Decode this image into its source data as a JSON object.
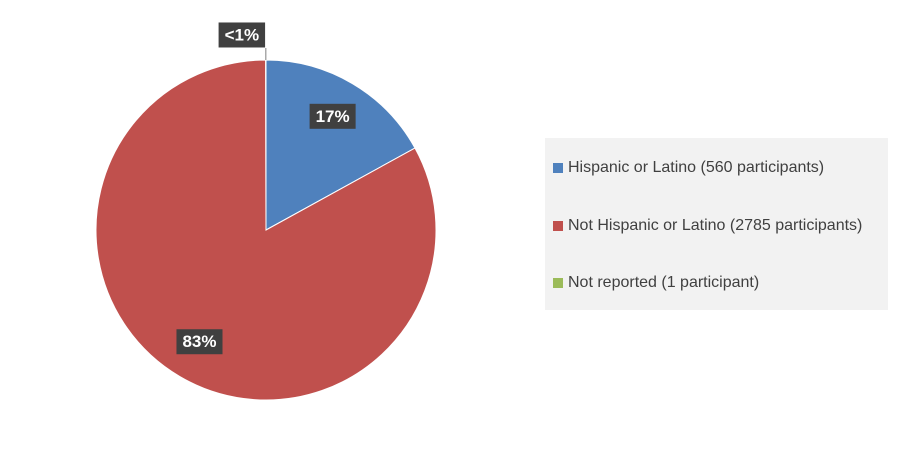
{
  "chart_data": {
    "type": "pie",
    "categories": [
      "Hispanic or Latino (560 participants)",
      "Not Hispanic or Latino (2785 participants)",
      "Not reported (1 participant)"
    ],
    "values": [
      17,
      83,
      0.03
    ],
    "value_labels": [
      "17%",
      "83%",
      "<1%"
    ],
    "colors": [
      "#4f81bd",
      "#c0504d",
      "#9bbb59"
    ],
    "legend": "right"
  }
}
